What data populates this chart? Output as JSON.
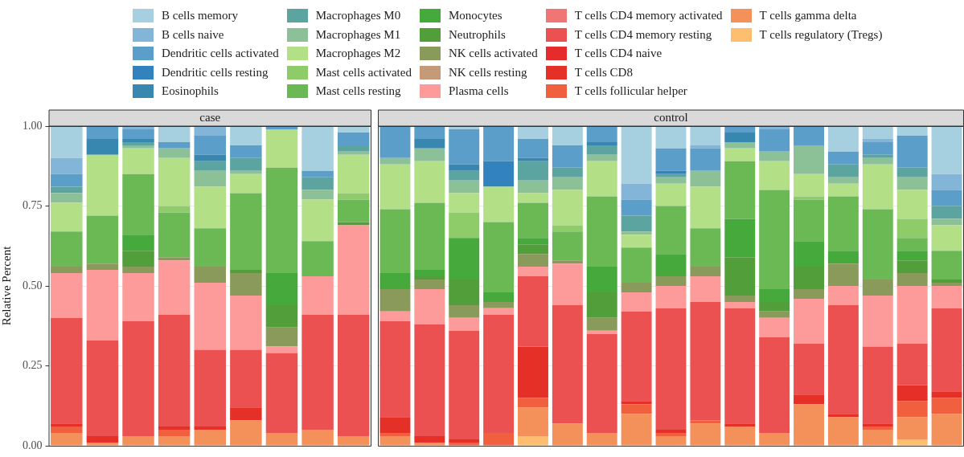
{
  "chart_data": [
    {
      "type": "bar",
      "title": "case",
      "ylabel": "Relative Percent",
      "stacked": true,
      "grid": true,
      "legend": "top",
      "tick_labels": "y",
      "categories": [
        null,
        null,
        null,
        null,
        null,
        null,
        null,
        null,
        null
      ],
      "ylim": [
        0,
        1
      ],
      "yticks": [
        {
          "value": 0,
          "label": "0.00"
        },
        0.25,
        {
          "value": 0.5,
          "label": "0.50"
        },
        0.75,
        {
          "value": 1,
          "label": "1.00"
        }
      ],
      "series": [
        {
          "name": "T cells regulatory (Tregs)",
          "color": "#fdbf6f",
          "values": [
            0,
            0,
            0,
            0,
            0,
            0,
            0,
            0,
            0
          ]
        },
        {
          "name": "T cells gamma delta",
          "color": "#f4915a",
          "values": [
            0.04,
            0.01,
            0.03,
            0.03,
            0.05,
            0.08,
            0.04,
            0.05,
            0.03
          ]
        },
        {
          "name": "T cells follicular helper",
          "color": "#f0603f",
          "values": [
            0.02,
            0,
            0,
            0.02,
            0,
            0,
            0,
            0,
            0
          ]
        },
        {
          "name": "T cells CD8",
          "color": "#e53027",
          "values": [
            0.01,
            0.02,
            0,
            0.01,
            0.01,
            0.04,
            0,
            0,
            0
          ]
        },
        {
          "name": "T cells CD4 naive",
          "color": "#e52b2b",
          "values": [
            0,
            0,
            0,
            0,
            0,
            0,
            0,
            0,
            0
          ]
        },
        {
          "name": "T cells CD4 memory resting",
          "color": "#ec5151",
          "values": [
            0.33,
            0.3,
            0.36,
            0.35,
            0.24,
            0.18,
            0.25,
            0.36,
            0.38
          ]
        },
        {
          "name": "T cells CD4 memory activated",
          "color": "#f07575",
          "values": [
            0,
            0,
            0,
            0,
            0,
            0,
            0,
            0,
            0
          ]
        },
        {
          "name": "Plasma cells",
          "color": "#fd9a9a",
          "values": [
            0.14,
            0.22,
            0.15,
            0.17,
            0.21,
            0.17,
            0.02,
            0.12,
            0.28
          ]
        },
        {
          "name": "NK cells resting",
          "color": "#c49a78",
          "values": [
            0,
            0,
            0,
            0,
            0,
            0,
            0,
            0,
            0
          ]
        },
        {
          "name": "NK cells activated",
          "color": "#8a9a5b",
          "values": [
            0.02,
            0.02,
            0.02,
            0.01,
            0.05,
            0.07,
            0.06,
            0,
            0
          ]
        },
        {
          "name": "Neutrophils",
          "color": "#529e3a",
          "values": [
            0,
            0,
            0.05,
            0,
            0,
            0.01,
            0.07,
            0,
            0.01
          ]
        },
        {
          "name": "Monocytes",
          "color": "#45a93b",
          "values": [
            0,
            0,
            0.05,
            0,
            0,
            0,
            0.1,
            0,
            0
          ]
        },
        {
          "name": "Mast cells resting",
          "color": "#6bb955",
          "values": [
            0.11,
            0.15,
            0.19,
            0.14,
            0.12,
            0.24,
            0.33,
            0.11,
            0.07
          ]
        },
        {
          "name": "Mast cells activated",
          "color": "#8ecc6a",
          "values": [
            0,
            0,
            0,
            0.02,
            0,
            0,
            0,
            0,
            0.02
          ]
        },
        {
          "name": "Macrophages M2",
          "color": "#b3e086",
          "values": [
            0.09,
            0.19,
            0.08,
            0.15,
            0.13,
            0.06,
            0.12,
            0.13,
            0.12
          ]
        },
        {
          "name": "Macrophages M1",
          "color": "#8cc198",
          "values": [
            0.03,
            0,
            0.01,
            0.03,
            0.05,
            0.01,
            0,
            0.03,
            0.01
          ]
        },
        {
          "name": "Macrophages M0",
          "color": "#5ba4a0",
          "values": [
            0.02,
            0,
            0.01,
            0,
            0.03,
            0.04,
            0,
            0.04,
            0.02
          ]
        },
        {
          "name": "Eosinophils",
          "color": "#3787b0",
          "values": [
            0,
            0.05,
            0.01,
            0,
            0.02,
            0,
            0,
            0,
            0
          ]
        },
        {
          "name": "Dendritic cells resting",
          "color": "#3182bd",
          "values": [
            0,
            0,
            0,
            0,
            0,
            0,
            0,
            0,
            0
          ]
        },
        {
          "name": "Dendritic cells activated",
          "color": "#5a9ec9",
          "values": [
            0.04,
            0.04,
            0.03,
            0.02,
            0.06,
            0.04,
            0.01,
            0.02,
            0.04
          ]
        },
        {
          "name": "B cells naive",
          "color": "#82b5d8",
          "values": [
            0.05,
            0,
            0.01,
            0,
            0.03,
            0,
            0,
            0,
            0
          ]
        },
        {
          "name": "B cells memory",
          "color": "#a6d0e0",
          "values": [
            0.1,
            0,
            0,
            0.05,
            0,
            0.06,
            0,
            0.14,
            0.02
          ]
        }
      ]
    },
    {
      "type": "bar",
      "title": "control",
      "stacked": true,
      "grid": true,
      "tick_labels": false,
      "categories": [
        null,
        null,
        null,
        null,
        null,
        null,
        null,
        null,
        null,
        null,
        null,
        null,
        null,
        null,
        null,
        null,
        null
      ],
      "ylim": [
        0,
        1
      ],
      "yticks": [
        0,
        0.25,
        0.5,
        0.75,
        1
      ],
      "series": [
        {
          "color": "#fdbf6f",
          "values": [
            0,
            0,
            0,
            0,
            0.03,
            0,
            0,
            0,
            0,
            0,
            0,
            0,
            0,
            0,
            0,
            0.02,
            0
          ]
        },
        {
          "color": "#f4915a",
          "values": [
            0.03,
            0.01,
            0,
            0,
            0.09,
            0.07,
            0.04,
            0.1,
            0.03,
            0.07,
            0.06,
            0.04,
            0.13,
            0.09,
            0.05,
            0.07,
            0.1
          ]
        },
        {
          "color": "#f0603f",
          "values": [
            0.01,
            0,
            0.01,
            0.04,
            0.03,
            0,
            0,
            0.03,
            0.01,
            0.01,
            0,
            0,
            0,
            0,
            0.01,
            0.05,
            0.05
          ]
        },
        {
          "color": "#e53027",
          "values": [
            0.05,
            0.02,
            0.01,
            0,
            0.16,
            0,
            0,
            0.01,
            0.01,
            0,
            0.01,
            0,
            0.03,
            0.01,
            0.01,
            0.05,
            0.02
          ]
        },
        {
          "color": "#e52b2b",
          "values": [
            0,
            0,
            0,
            0,
            0,
            0,
            0,
            0,
            0,
            0,
            0,
            0,
            0,
            0,
            0,
            0,
            0
          ]
        },
        {
          "color": "#ec5151",
          "values": [
            0.3,
            0.35,
            0.34,
            0.37,
            0.22,
            0.37,
            0.31,
            0.28,
            0.38,
            0.37,
            0.36,
            0.3,
            0.16,
            0.34,
            0.24,
            0.13,
            0.26
          ]
        },
        {
          "color": "#f07575",
          "values": [
            0,
            0,
            0,
            0,
            0,
            0,
            0,
            0,
            0,
            0,
            0,
            0,
            0,
            0,
            0,
            0,
            0
          ]
        },
        {
          "color": "#fd9a9a",
          "values": [
            0.03,
            0.11,
            0.04,
            0.02,
            0.03,
            0.13,
            0.01,
            0.06,
            0.07,
            0.08,
            0.02,
            0.06,
            0.14,
            0.06,
            0.16,
            0.18,
            0.07
          ]
        },
        {
          "color": "#c49a78",
          "values": [
            0,
            0,
            0,
            0,
            0,
            0,
            0,
            0,
            0,
            0,
            0,
            0,
            0,
            0,
            0,
            0,
            0
          ]
        },
        {
          "color": "#8a9a5b",
          "values": [
            0.07,
            0.03,
            0.04,
            0.02,
            0.04,
            0.01,
            0.04,
            0.03,
            0.03,
            0.03,
            0.02,
            0.02,
            0.03,
            0.07,
            0.05,
            0.04,
            0.01
          ]
        },
        {
          "color": "#529e3a",
          "values": [
            0,
            0.01,
            0.08,
            0,
            0.03,
            0,
            0.08,
            0,
            0,
            0,
            0.12,
            0.03,
            0.07,
            0,
            0,
            0.04,
            0.01
          ]
        },
        {
          "color": "#45a93b",
          "values": [
            0.05,
            0.02,
            0.13,
            0.03,
            0.02,
            0,
            0.08,
            0,
            0.07,
            0,
            0.12,
            0.04,
            0.08,
            0.04,
            0,
            0.03,
            0
          ]
        },
        {
          "color": "#6bb955",
          "values": [
            0.2,
            0.21,
            0,
            0.22,
            0.11,
            0.09,
            0.22,
            0.11,
            0.15,
            0.12,
            0.18,
            0.31,
            0.13,
            0.17,
            0.22,
            0.04,
            0.09
          ]
        },
        {
          "color": "#8ecc6a",
          "values": [
            0,
            0,
            0.08,
            0,
            0,
            0.02,
            0,
            0,
            0,
            0,
            0,
            0,
            0.01,
            0,
            0,
            0.06,
            0
          ]
        },
        {
          "color": "#b3e086",
          "values": [
            0.14,
            0.13,
            0.06,
            0.11,
            0.03,
            0.11,
            0.11,
            0.04,
            0.07,
            0.13,
            0.04,
            0.09,
            0.07,
            0.04,
            0.14,
            0.09,
            0.08
          ]
        },
        {
          "color": "#8cc198",
          "values": [
            0.02,
            0.04,
            0.04,
            0,
            0.04,
            0.04,
            0.02,
            0.01,
            0.02,
            0.05,
            0.02,
            0.03,
            0.09,
            0.02,
            0.02,
            0.04,
            0.02
          ]
        },
        {
          "color": "#5ba4a0",
          "values": [
            0,
            0,
            0.03,
            0,
            0.06,
            0.03,
            0.03,
            0.05,
            0.01,
            0,
            0,
            0,
            0,
            0.04,
            0.01,
            0.03,
            0.04
          ]
        },
        {
          "color": "#3787b0",
          "values": [
            0,
            0.03,
            0.02,
            0,
            0.01,
            0,
            0.01,
            0,
            0,
            0,
            0.03,
            0,
            0,
            0,
            0,
            0,
            0
          ]
        },
        {
          "color": "#3182bd",
          "values": [
            0,
            0,
            0,
            0.08,
            0,
            0,
            0,
            0,
            0.01,
            0,
            0,
            0,
            0,
            0,
            0,
            0,
            0
          ]
        },
        {
          "color": "#5a9ec9",
          "values": [
            0.1,
            0.04,
            0.11,
            0.11,
            0.06,
            0.07,
            0.05,
            0.05,
            0.07,
            0.07,
            0.02,
            0.07,
            0.06,
            0.04,
            0.04,
            0.1,
            0.05
          ]
        },
        {
          "color": "#82b5d8",
          "values": [
            0,
            0,
            0,
            0,
            0,
            0,
            0,
            0.05,
            0,
            0.01,
            0,
            0.01,
            0,
            0,
            0.01,
            0,
            0.05
          ]
        },
        {
          "color": "#a6d0e0",
          "values": [
            0,
            0,
            0.01,
            0,
            0.04,
            0.06,
            0,
            0.18,
            0.07,
            0.06,
            0,
            0,
            0,
            0.08,
            0.04,
            0.03,
            0.15
          ]
        }
      ]
    }
  ]
}
